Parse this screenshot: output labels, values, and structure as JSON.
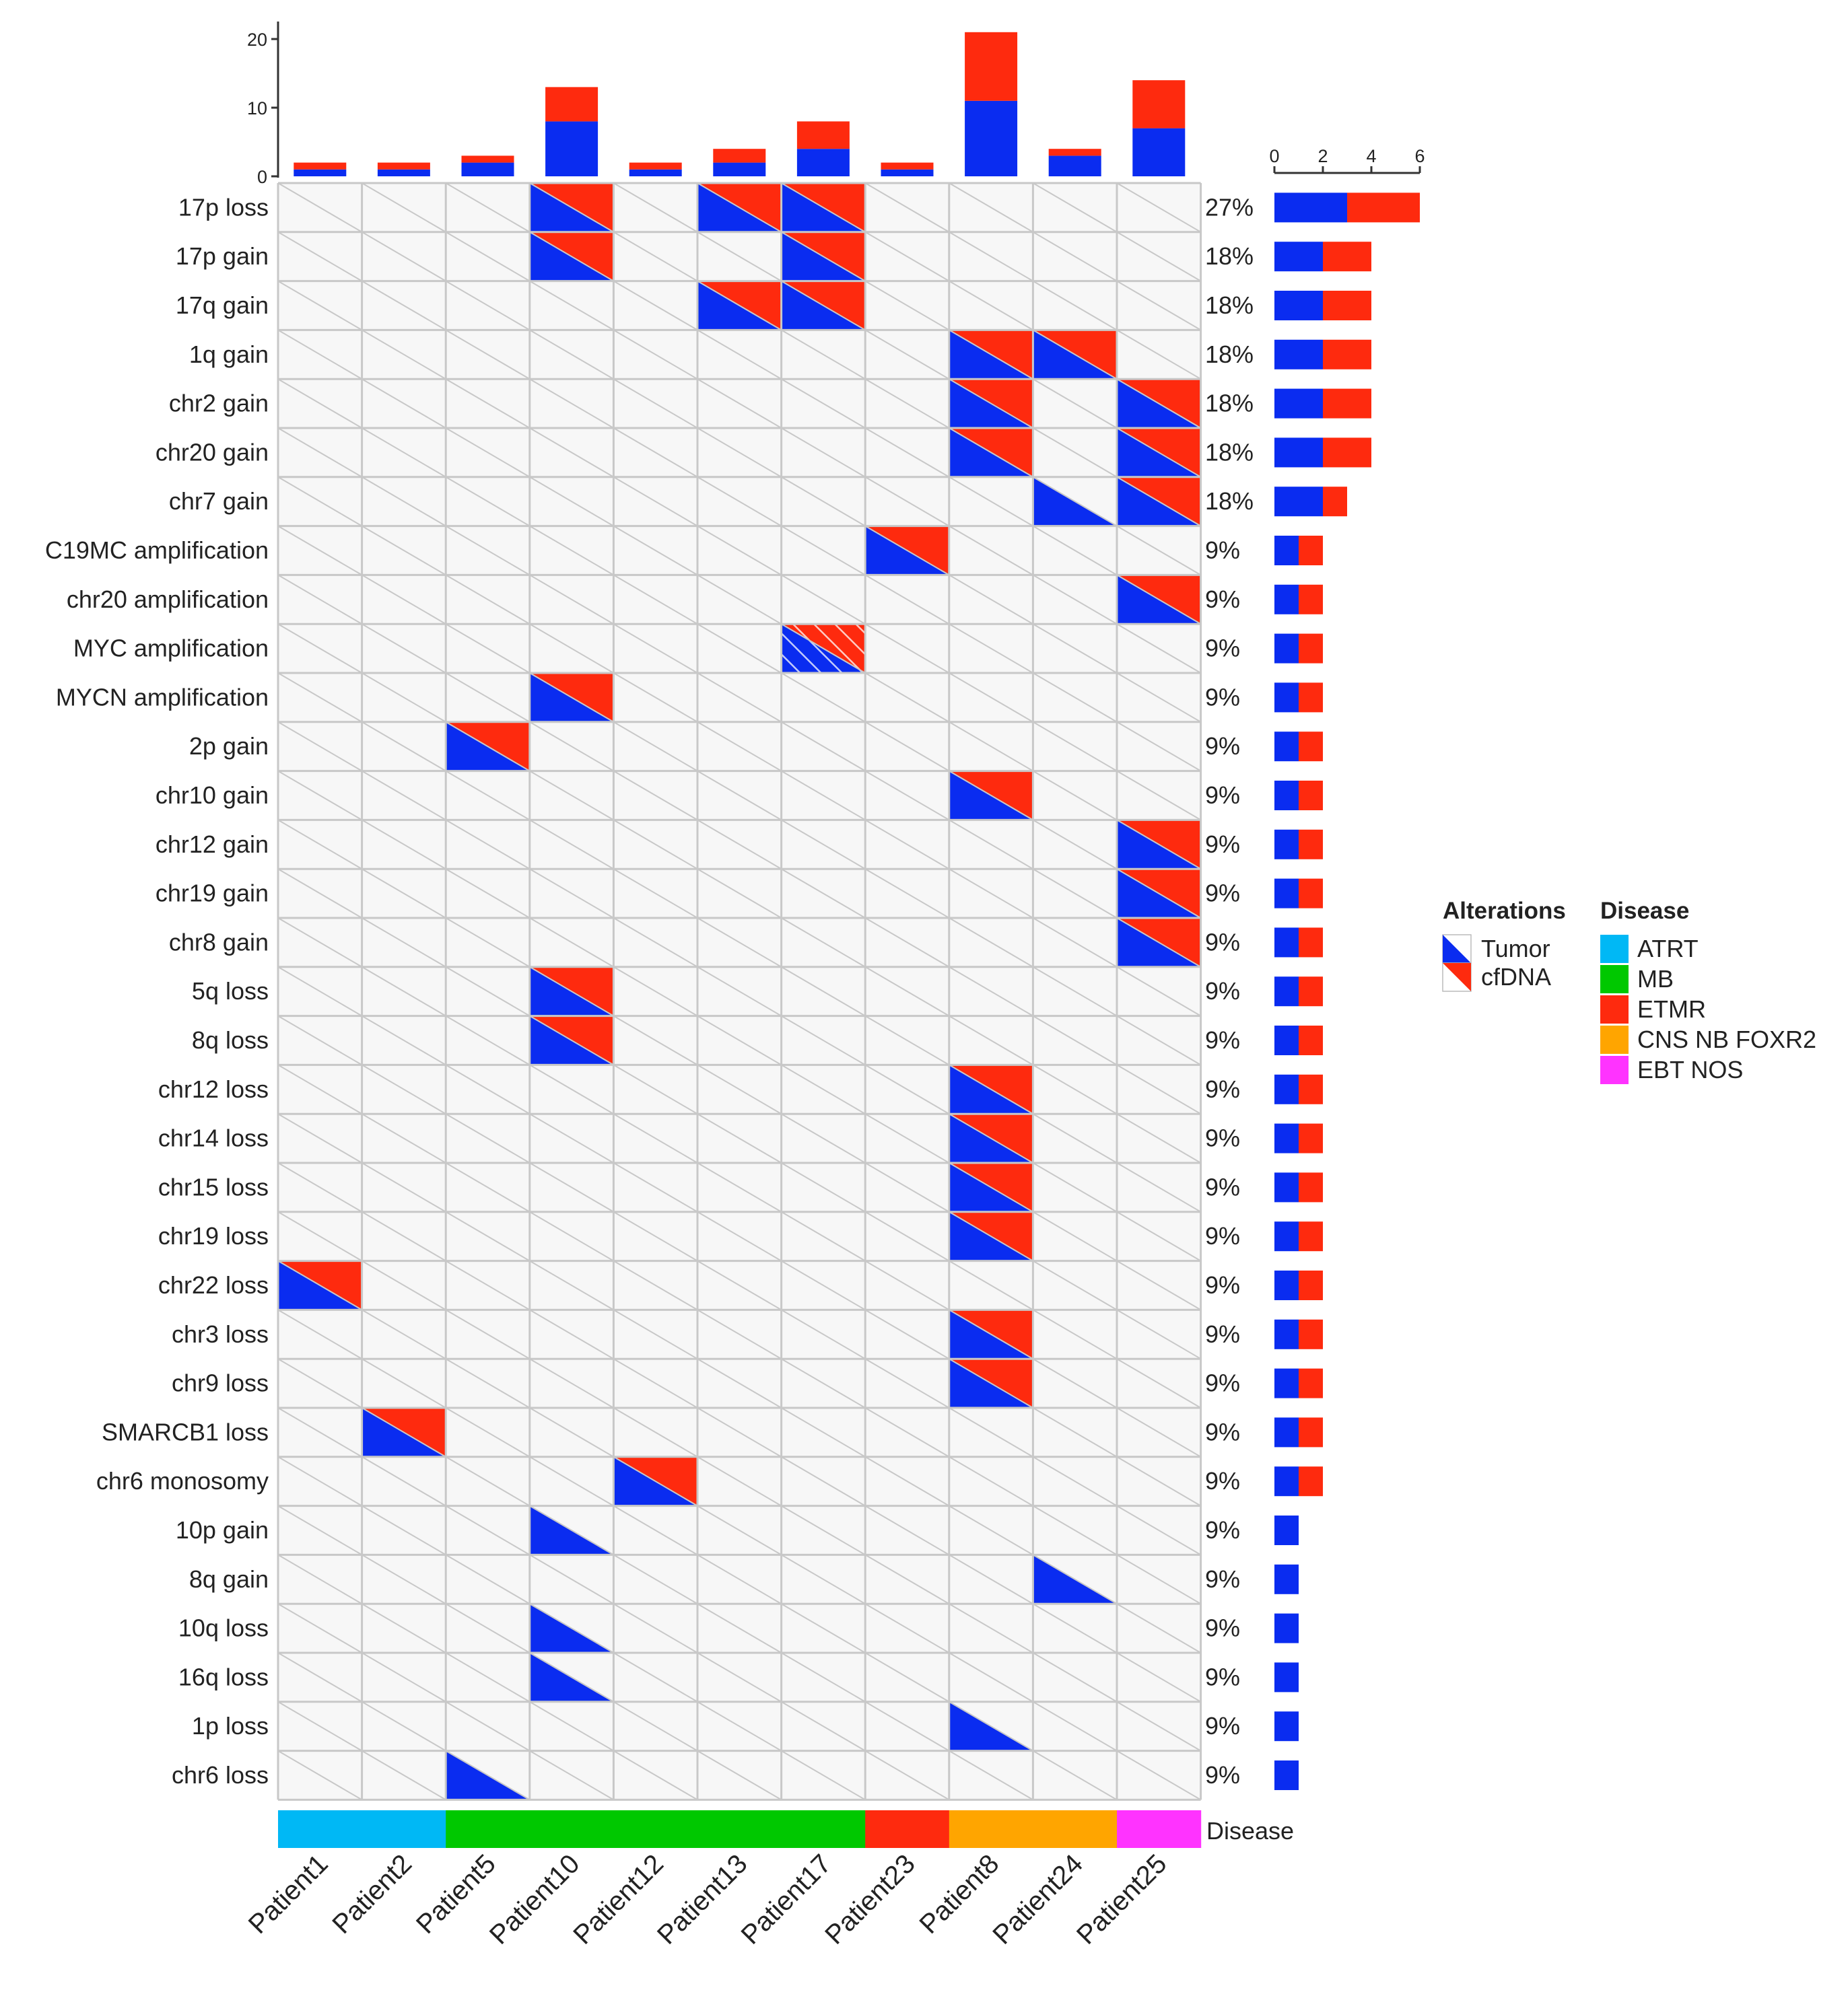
{
  "chart_data": {
    "type": "oncoprint",
    "title": "",
    "patients": [
      "Patient1",
      "Patient2",
      "Patient5",
      "Patient10",
      "Patient12",
      "Patient13",
      "Patient17",
      "Patient23",
      "Patient8",
      "Patient24",
      "Patient25"
    ],
    "alterations": [
      "17p loss",
      "17p gain",
      "17q gain",
      "1q gain",
      "chr2 gain",
      "chr20 gain",
      "chr7 gain",
      "C19MC amplification",
      "chr20 amplification",
      "MYC amplification",
      "MYCN amplification",
      "2p gain",
      "chr10 gain",
      "chr12 gain",
      "chr19 gain",
      "chr8 gain",
      "5q loss",
      "8q loss",
      "chr12 loss",
      "chr14 loss",
      "chr15 loss",
      "chr19 loss",
      "chr22 loss",
      "chr3 loss",
      "chr9 loss",
      "SMARCB1 loss",
      "chr6 monosomy",
      "10p gain",
      "8q gain",
      "10q loss",
      "16q loss",
      "1p loss",
      "chr6 loss"
    ],
    "percentages": [
      "27%",
      "18%",
      "18%",
      "18%",
      "18%",
      "18%",
      "18%",
      "9%",
      "9%",
      "9%",
      "9%",
      "9%",
      "9%",
      "9%",
      "9%",
      "9%",
      "9%",
      "9%",
      "9%",
      "9%",
      "9%",
      "9%",
      "9%",
      "9%",
      "9%",
      "9%",
      "9%",
      "9%",
      "9%",
      "9%",
      "9%",
      "9%",
      "9%"
    ],
    "cells": [
      {
        "row": 0,
        "col": 3,
        "tumor": true,
        "cfdna": true
      },
      {
        "row": 0,
        "col": 5,
        "tumor": true,
        "cfdna": true
      },
      {
        "row": 0,
        "col": 6,
        "tumor": true,
        "cfdna": true
      },
      {
        "row": 1,
        "col": 3,
        "tumor": true,
        "cfdna": true
      },
      {
        "row": 1,
        "col": 6,
        "tumor": true,
        "cfdna": true
      },
      {
        "row": 2,
        "col": 5,
        "tumor": true,
        "cfdna": true
      },
      {
        "row": 2,
        "col": 6,
        "tumor": true,
        "cfdna": true
      },
      {
        "row": 3,
        "col": 8,
        "tumor": true,
        "cfdna": true
      },
      {
        "row": 3,
        "col": 9,
        "tumor": true,
        "cfdna": true
      },
      {
        "row": 4,
        "col": 8,
        "tumor": true,
        "cfdna": true
      },
      {
        "row": 4,
        "col": 10,
        "tumor": true,
        "cfdna": true
      },
      {
        "row": 5,
        "col": 8,
        "tumor": true,
        "cfdna": true
      },
      {
        "row": 5,
        "col": 10,
        "tumor": true,
        "cfdna": true
      },
      {
        "row": 6,
        "col": 9,
        "tumor": true,
        "cfdna": false
      },
      {
        "row": 6,
        "col": 10,
        "tumor": true,
        "cfdna": true
      },
      {
        "row": 7,
        "col": 7,
        "tumor": true,
        "cfdna": true
      },
      {
        "row": 8,
        "col": 10,
        "tumor": true,
        "cfdna": true
      },
      {
        "row": 9,
        "col": 6,
        "tumor": true,
        "cfdna": true,
        "hatched": true
      },
      {
        "row": 10,
        "col": 3,
        "tumor": true,
        "cfdna": true
      },
      {
        "row": 11,
        "col": 2,
        "tumor": true,
        "cfdna": true
      },
      {
        "row": 12,
        "col": 8,
        "tumor": true,
        "cfdna": true
      },
      {
        "row": 13,
        "col": 10,
        "tumor": true,
        "cfdna": true
      },
      {
        "row": 14,
        "col": 10,
        "tumor": true,
        "cfdna": true
      },
      {
        "row": 15,
        "col": 10,
        "tumor": true,
        "cfdna": true
      },
      {
        "row": 16,
        "col": 3,
        "tumor": true,
        "cfdna": true
      },
      {
        "row": 17,
        "col": 3,
        "tumor": true,
        "cfdna": true
      },
      {
        "row": 18,
        "col": 8,
        "tumor": true,
        "cfdna": true
      },
      {
        "row": 19,
        "col": 8,
        "tumor": true,
        "cfdna": true
      },
      {
        "row": 20,
        "col": 8,
        "tumor": true,
        "cfdna": true
      },
      {
        "row": 21,
        "col": 8,
        "tumor": true,
        "cfdna": true
      },
      {
        "row": 22,
        "col": 0,
        "tumor": true,
        "cfdna": true
      },
      {
        "row": 23,
        "col": 8,
        "tumor": true,
        "cfdna": true
      },
      {
        "row": 24,
        "col": 8,
        "tumor": true,
        "cfdna": true
      },
      {
        "row": 25,
        "col": 1,
        "tumor": true,
        "cfdna": true
      },
      {
        "row": 26,
        "col": 4,
        "tumor": true,
        "cfdna": true
      },
      {
        "row": 27,
        "col": 3,
        "tumor": true,
        "cfdna": false
      },
      {
        "row": 28,
        "col": 9,
        "tumor": true,
        "cfdna": false
      },
      {
        "row": 29,
        "col": 3,
        "tumor": true,
        "cfdna": false
      },
      {
        "row": 30,
        "col": 3,
        "tumor": true,
        "cfdna": false
      },
      {
        "row": 31,
        "col": 8,
        "tumor": true,
        "cfdna": false
      },
      {
        "row": 32,
        "col": 2,
        "tumor": true,
        "cfdna": false
      }
    ],
    "top_bar": {
      "ylim": [
        0,
        22
      ],
      "ticks": [
        0,
        10,
        20
      ],
      "tumor": [
        1,
        1,
        2,
        8,
        1,
        2,
        4,
        1,
        11,
        3,
        7
      ],
      "cfdna": [
        1,
        1,
        1,
        5,
        1,
        2,
        4,
        1,
        10,
        1,
        7
      ]
    },
    "right_bar": {
      "xlim": [
        0,
        6
      ],
      "ticks": [
        0,
        2,
        4,
        6
      ],
      "tumor": [
        3,
        2,
        2,
        2,
        2,
        2,
        2,
        1,
        1,
        1,
        1,
        1,
        1,
        1,
        1,
        1,
        1,
        1,
        1,
        1,
        1,
        1,
        1,
        1,
        1,
        1,
        1,
        1,
        1,
        1,
        1,
        1,
        1
      ],
      "cfdna": [
        3,
        2,
        2,
        2,
        2,
        2,
        1,
        1,
        1,
        1,
        1,
        1,
        1,
        1,
        1,
        1,
        1,
        1,
        1,
        1,
        1,
        1,
        1,
        1,
        1,
        1,
        1,
        0,
        0,
        0,
        0,
        0,
        0
      ]
    },
    "disease_track": {
      "label": "Disease",
      "values": [
        "ATRT",
        "ATRT",
        "MB",
        "MB",
        "MB",
        "MB",
        "MB",
        "ETMR",
        "CNS NB FOXR2",
        "CNS NB FOXR2",
        "EBT NOS"
      ]
    },
    "legend": {
      "alterations_title": "Alterations",
      "alterations": [
        {
          "name": "Tumor",
          "color": "#0a2cf0"
        },
        {
          "name": "cfDNA",
          "color": "#fe2a0e"
        }
      ],
      "disease_title": "Disease",
      "diseases": [
        {
          "name": "ATRT",
          "color": "#00b8f5"
        },
        {
          "name": "MB",
          "color": "#00c800"
        },
        {
          "name": "ETMR",
          "color": "#fe2a0e"
        },
        {
          "name": "CNS NB FOXR2",
          "color": "#ffa500"
        },
        {
          "name": "EBT NOS",
          "color": "#ff33ff"
        }
      ]
    },
    "colors": {
      "tumor": "#0a2cf0",
      "cfdna": "#fe2a0e",
      "cell_bg": "#f7f7f7",
      "grid": "#c8c8c8"
    }
  }
}
